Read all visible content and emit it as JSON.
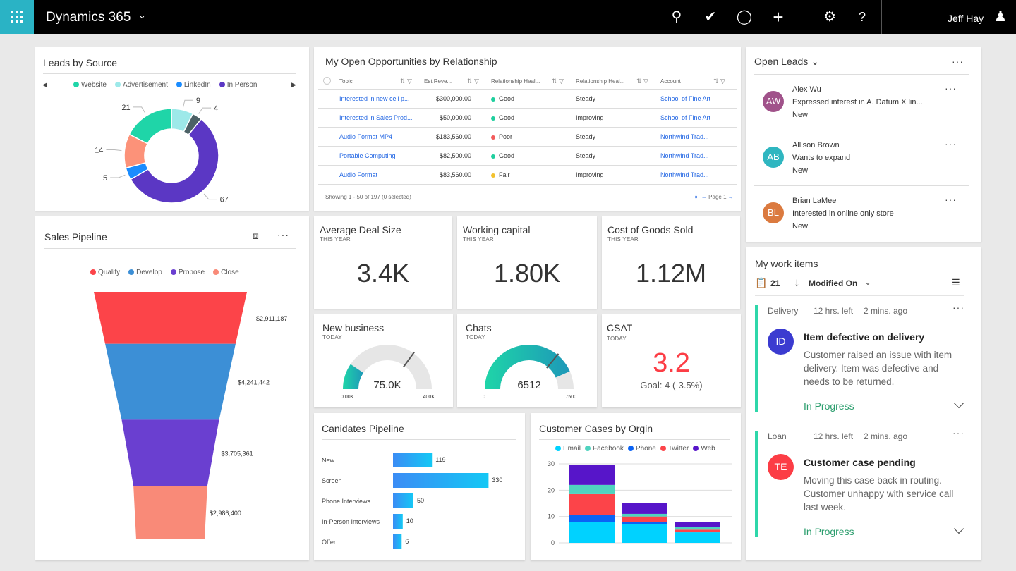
{
  "app": {
    "title": "Dynamics 365",
    "user": "Jeff Hay",
    "icons": [
      "waffle-icon",
      "search-icon",
      "task-icon",
      "lightbulb-icon",
      "plus-icon",
      "gear-icon",
      "help-icon",
      "person-icon"
    ],
    "accent": "#2ab3c5"
  },
  "leads_by_source": {
    "title": "Leads by Source",
    "chart_data": {
      "type": "pie",
      "donut": true,
      "legend": [
        "Website",
        "Advertisement",
        "LinkedIn",
        "In Person"
      ],
      "legend_placement": "top",
      "slices": [
        {
          "name": "Advertisement",
          "value": 9,
          "color": "#9de9e9"
        },
        {
          "name": "",
          "value": 4,
          "color": "#4c6166"
        },
        {
          "name": "In Person",
          "value": 67,
          "color": "#5b37c4"
        },
        {
          "name": "LinkedIn",
          "value": 5,
          "color": "#1a8cff"
        },
        {
          "name": "",
          "value": 14,
          "color": "#fc9279"
        },
        {
          "name": "Website",
          "value": 21,
          "color": "#1fd5a8"
        }
      ]
    }
  },
  "opportunities": {
    "title": "My Open Opportunities by Relationship",
    "columns": [
      "Topic",
      "Est Reve...",
      "Relationship Heal...",
      "Relationship Heal...",
      "Account"
    ],
    "rows": [
      [
        "Interested in new cell p...",
        "$300,000.00",
        "Good",
        "Steady",
        "School of Fine Art"
      ],
      [
        "Interested in Sales Prod...",
        "$50,000.00",
        "Good",
        "Improving",
        "School of Fine Art"
      ],
      [
        "Audio Format MP4",
        "$183,560.00",
        "Poor",
        "Steady",
        "Northwind Trad..."
      ],
      [
        "Portable Computing",
        "$82,500.00",
        "Good",
        "Steady",
        "Northwind Trad..."
      ],
      [
        "Audio Format",
        "$83,560.00",
        "Fair",
        "Improving",
        "Northwind Trad..."
      ]
    ],
    "health_colors": {
      "Good": "#1fcf9e",
      "Poor": "#f25b5b",
      "Fair": "#f2c12e"
    },
    "footer": "Showing 1 - 50 of 197 (0 selected)",
    "page": "Page 1"
  },
  "open_leads": {
    "title": "Open Leads",
    "items": [
      {
        "initials": "AW",
        "name": "Alex Wu",
        "desc": "Expressed interest in A. Datum X lin...",
        "status": "New",
        "color": "#a0528a"
      },
      {
        "initials": "AB",
        "name": "Allison Brown",
        "desc": "Wants to expand",
        "status": "New",
        "color": "#2fb6c0"
      },
      {
        "initials": "BL",
        "name": "Brian LaMee",
        "desc": "Interested in online only store",
        "status": "New",
        "color": "#db7a3f"
      }
    ]
  },
  "sales_pipeline": {
    "title": "Sales Pipeline",
    "chart_data": {
      "type": "funnel",
      "categories": [
        "Qualify",
        "Develop",
        "Propose",
        "Close"
      ],
      "values": [
        2911187,
        4241442,
        3705361,
        2986400
      ],
      "labels": [
        "$2,911,187",
        "$4,241,442",
        "$3,705,361",
        "$2,986,400"
      ],
      "colors": [
        "#fc4449",
        "#3c8fd6",
        "#6a3fd0",
        "#f98a78"
      ]
    }
  },
  "kpis": [
    {
      "title": "Average Deal Size",
      "period": "THIS YEAR",
      "value": "3.4K"
    },
    {
      "title": "Working capital",
      "period": "THIS YEAR",
      "value": "1.80K"
    },
    {
      "title": "Cost of Goods Sold",
      "period": "THIS YEAR",
      "value": "1.12M"
    }
  ],
  "gauges": [
    {
      "title": "New business",
      "period": "TODAY",
      "value_label": "75.0K",
      "min": "0.00K",
      "max": "400K",
      "fraction": 0.19,
      "target_fraction": 0.7
    },
    {
      "title": "Chats",
      "period": "TODAY",
      "value_label": "6512",
      "min": "0",
      "max": "7500",
      "fraction": 0.8683,
      "target_fraction": 0.72
    }
  ],
  "csat": {
    "title": "CSAT",
    "period": "TODAY",
    "value": "3.2",
    "goal": "Goal: 4 (-3.5%)",
    "color": "#fc3d45"
  },
  "candidates": {
    "title": "Canidates Pipeline",
    "chart_data": {
      "type": "bar",
      "orientation": "horizontal",
      "categories": [
        "New",
        "Screen",
        "Phone Interviews",
        "In-Person Interviews",
        "Offer"
      ],
      "values": [
        119,
        330,
        50,
        10,
        6
      ]
    }
  },
  "cases": {
    "title": "Customer Cases by Orgin",
    "chart_data": {
      "type": "bar",
      "stacked": true,
      "ylim": [
        0,
        30
      ],
      "yticks": [
        0,
        10,
        20,
        30
      ],
      "grid": true,
      "legend_placement": "top",
      "series": [
        {
          "name": "Email",
          "color": "#00d2ff",
          "values": [
            8,
            7,
            4
          ]
        },
        {
          "name": "Phone",
          "color": "#0a63f5",
          "values": [
            2.5,
            1,
            0
          ]
        },
        {
          "name": "Twitter",
          "color": "#fc4449",
          "values": [
            8,
            2,
            1
          ]
        },
        {
          "name": "Facebook",
          "color": "#4fd3bf",
          "values": [
            3.5,
            1,
            1
          ]
        },
        {
          "name": "Web",
          "color": "#5715c9",
          "values": [
            7.5,
            4,
            2
          ]
        }
      ],
      "legend": [
        "Email",
        "Facebook",
        "Phone",
        "Twitter",
        "Web"
      ]
    }
  },
  "work_items": {
    "title": "My work items",
    "count": "21",
    "sort": "Modified On",
    "items": [
      {
        "type": "Delivery",
        "left": "12 hrs. left",
        "ago": "2 mins. ago",
        "initials": "ID",
        "color": "#3b3bd0",
        "title": "Item defective on delivery",
        "desc": "Customer raised an issue with item delivery. Item was defective and needs to be returned.",
        "status": "In Progress"
      },
      {
        "type": "Loan",
        "left": "12 hrs. left",
        "ago": "2 mins. ago",
        "initials": "TE",
        "color": "#fc3d45",
        "title": "Customer case pending",
        "desc": "Moving this case back in routing. Customer unhappy with service call last week.",
        "status": "In Progress"
      }
    ]
  }
}
